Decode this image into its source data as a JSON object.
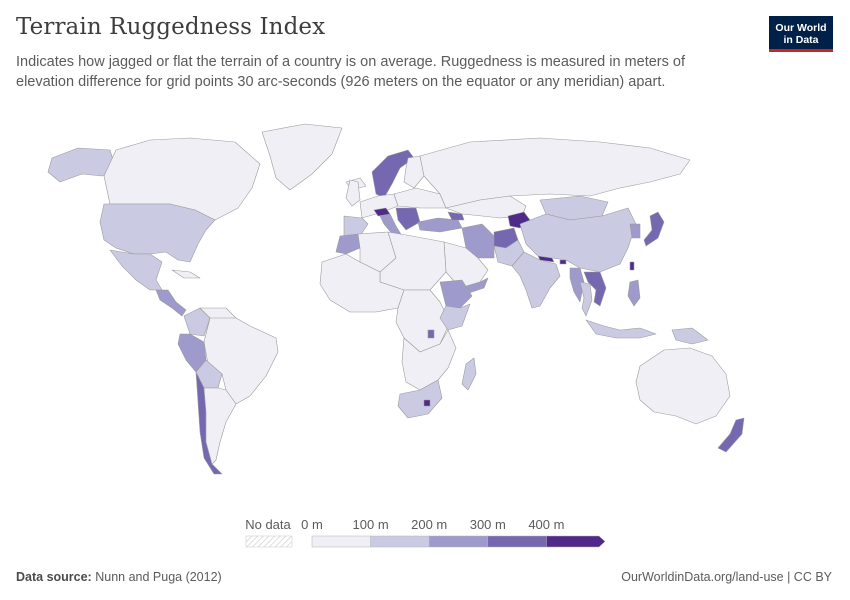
{
  "header": {
    "title": "Terrain Ruggedness Index",
    "subtitle": "Indicates how jagged or flat the terrain of a country is on average. Ruggedness is measured in meters of elevation difference for grid points 30 arc-seconds (926 meters on the equator or any meridian) apart."
  },
  "logo": {
    "line1": "Our World",
    "line2": "in Data",
    "background": "#002147",
    "accent": "#ce261e"
  },
  "legend": {
    "no_data_label": "No data",
    "bins": [
      {
        "label": "0 m",
        "color": "#efeff5"
      },
      {
        "label": "100 m",
        "color": "#cacae3"
      },
      {
        "label": "200 m",
        "color": "#9e9acb"
      },
      {
        "label": "300 m",
        "color": "#7567b0"
      },
      {
        "label": "400 m",
        "color": "#4f2a8a"
      }
    ]
  },
  "map": {
    "colors": {
      "very_low": "#efeff5",
      "low": "#cacae3",
      "medium": "#9e9acb",
      "high": "#7567b0",
      "very_high": "#4f2a8a",
      "border": "#9c9c9c"
    },
    "regions": [
      {
        "name": "greenland",
        "bin": "very_low"
      },
      {
        "name": "alaska",
        "bin": "low"
      },
      {
        "name": "canada",
        "bin": "very_low"
      },
      {
        "name": "united-states",
        "bin": "low"
      },
      {
        "name": "mexico",
        "bin": "low"
      },
      {
        "name": "central-america",
        "bin": "medium"
      },
      {
        "name": "cuba",
        "bin": "very_low"
      },
      {
        "name": "colombia",
        "bin": "low"
      },
      {
        "name": "venezuela",
        "bin": "very_low"
      },
      {
        "name": "brazil",
        "bin": "very_low"
      },
      {
        "name": "peru",
        "bin": "medium"
      },
      {
        "name": "bolivia",
        "bin": "low"
      },
      {
        "name": "chile",
        "bin": "high"
      },
      {
        "name": "argentina",
        "bin": "very_low"
      },
      {
        "name": "iceland",
        "bin": "very_low"
      },
      {
        "name": "scandinavia",
        "bin": "high"
      },
      {
        "name": "finland",
        "bin": "very_low"
      },
      {
        "name": "uk",
        "bin": "very_low"
      },
      {
        "name": "western-europe",
        "bin": "very_low"
      },
      {
        "name": "iberia",
        "bin": "low"
      },
      {
        "name": "alps",
        "bin": "very_high"
      },
      {
        "name": "balkans",
        "bin": "high"
      },
      {
        "name": "italy",
        "bin": "medium"
      },
      {
        "name": "eastern-europe",
        "bin": "very_low"
      },
      {
        "name": "russia",
        "bin": "very_low"
      },
      {
        "name": "kazakhstan",
        "bin": "very_low"
      },
      {
        "name": "turkey",
        "bin": "medium"
      },
      {
        "name": "caucasus",
        "bin": "high"
      },
      {
        "name": "iran",
        "bin": "medium"
      },
      {
        "name": "afghanistan",
        "bin": "high"
      },
      {
        "name": "tajikistan-kyrgyzstan",
        "bin": "very_high"
      },
      {
        "name": "pakistan",
        "bin": "low"
      },
      {
        "name": "india",
        "bin": "low"
      },
      {
        "name": "nepal",
        "bin": "very_high"
      },
      {
        "name": "bhutan",
        "bin": "very_high"
      },
      {
        "name": "mongolia",
        "bin": "low"
      },
      {
        "name": "china",
        "bin": "low"
      },
      {
        "name": "korea",
        "bin": "medium"
      },
      {
        "name": "japan",
        "bin": "high"
      },
      {
        "name": "myanmar",
        "bin": "medium"
      },
      {
        "name": "laos-vietnam",
        "bin": "high"
      },
      {
        "name": "thailand",
        "bin": "low"
      },
      {
        "name": "philippines",
        "bin": "medium"
      },
      {
        "name": "indonesia",
        "bin": "low"
      },
      {
        "name": "new-guinea",
        "bin": "low"
      },
      {
        "name": "taiwan",
        "bin": "very_high"
      },
      {
        "name": "arabia",
        "bin": "very_low"
      },
      {
        "name": "yemen",
        "bin": "medium"
      },
      {
        "name": "morocco",
        "bin": "medium"
      },
      {
        "name": "algeria",
        "bin": "very_low"
      },
      {
        "name": "sahara",
        "bin": "very_low"
      },
      {
        "name": "west-africa",
        "bin": "very_low"
      },
      {
        "name": "central-africa",
        "bin": "very_low"
      },
      {
        "name": "ethiopia",
        "bin": "medium"
      },
      {
        "name": "kenya",
        "bin": "low"
      },
      {
        "name": "rwanda-burundi",
        "bin": "high"
      },
      {
        "name": "southern-africa",
        "bin": "very_low"
      },
      {
        "name": "south-africa",
        "bin": "low"
      },
      {
        "name": "lesotho",
        "bin": "very_high"
      },
      {
        "name": "madagascar",
        "bin": "low"
      },
      {
        "name": "australia",
        "bin": "very_low"
      },
      {
        "name": "new-zealand",
        "bin": "high"
      }
    ]
  },
  "footer": {
    "source_label": "Data source:",
    "source_value": "Nunn and Puga (2012)",
    "url": "OurWorldinData.org/land-use | CC BY"
  }
}
